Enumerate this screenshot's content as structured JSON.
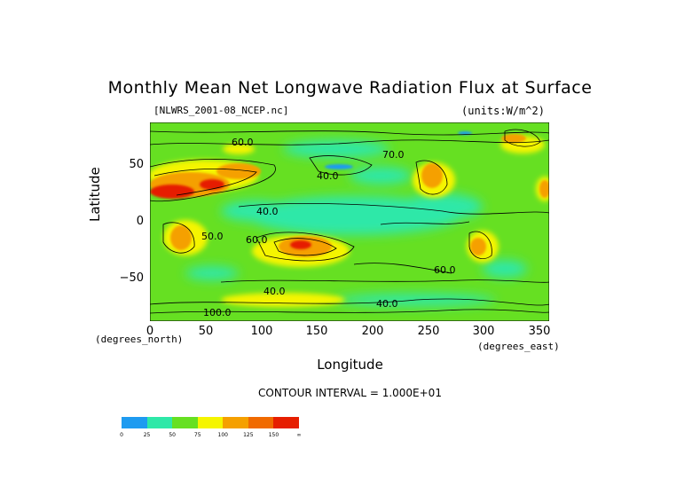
{
  "chart_data": {
    "type": "heatmap",
    "title": "Monthly Mean Net Longwave Radiation Flux at Surface",
    "source_file": "[NLWRS_2001-08_NCEP.nc]",
    "units_label": "(units:W/m^2)",
    "xlabel": "Longitude",
    "ylabel": "Latitude",
    "x_unit_label": "(degrees_east)",
    "y_unit_label": "(degrees_north)",
    "xlim": [
      0,
      360
    ],
    "ylim": [
      -90,
      90
    ],
    "x_ticks": [
      "0",
      "50",
      "100",
      "150",
      "200",
      "250",
      "300",
      "350"
    ],
    "y_ticks": [
      "50",
      "0",
      "−50"
    ],
    "contour_interval_text": "CONTOUR INTERVAL = 1.000E+01",
    "contour_labels": [
      "60.0",
      "40.0",
      "40.0",
      "50.0",
      "60.0",
      "60.0",
      "70.0",
      "40.0",
      "40.0",
      "100.0"
    ],
    "colorbar": {
      "tick_labels": [
        "0",
        "25",
        "50",
        "75",
        "100",
        "125",
        "150",
        "∞"
      ],
      "colors": [
        "#1e9bf0",
        "#2ee8a8",
        "#66e022",
        "#f5f500",
        "#f5a000",
        "#f06a00",
        "#e61e00"
      ]
    }
  }
}
